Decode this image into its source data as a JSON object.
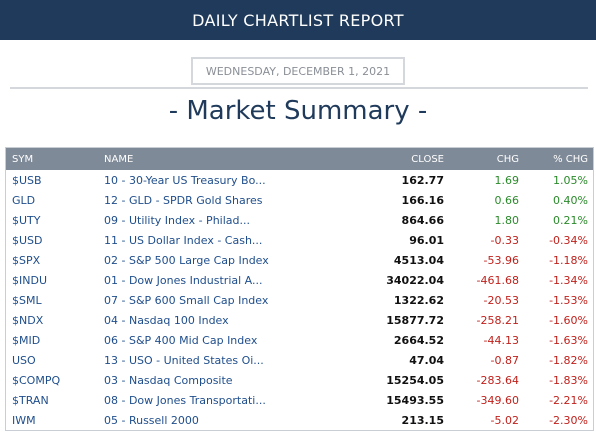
{
  "header": {
    "title": "DAILY CHARTLIST REPORT"
  },
  "date": "WEDNESDAY, DECEMBER 1, 2021",
  "section_title": "- Market Summary -",
  "colors": {
    "banner": "#1f3a5a",
    "positive": "#2a8a2a",
    "negative": "#c0201b",
    "link": "#1f4e8c"
  },
  "table": {
    "headers": {
      "sym": "SYM",
      "name": "NAME",
      "close": "CLOSE",
      "chg": "CHG",
      "pct": "% CHG"
    },
    "rows": [
      {
        "sym": "$USB",
        "name": "10 - 30-Year US Treasury Bo...",
        "close": "162.77",
        "chg": "1.69",
        "pct": "1.05%",
        "dir": "pos"
      },
      {
        "sym": "GLD",
        "name": "12 - GLD - SPDR Gold Shares",
        "close": "166.16",
        "chg": "0.66",
        "pct": "0.40%",
        "dir": "pos"
      },
      {
        "sym": "$UTY",
        "name": "09 - Utility Index - Philad...",
        "close": "864.66",
        "chg": "1.80",
        "pct": "0.21%",
        "dir": "pos"
      },
      {
        "sym": "$USD",
        "name": "11 - US Dollar Index - Cash...",
        "close": "96.01",
        "chg": "-0.33",
        "pct": "-0.34%",
        "dir": "neg"
      },
      {
        "sym": "$SPX",
        "name": "02 - S&P 500 Large Cap Index",
        "close": "4513.04",
        "chg": "-53.96",
        "pct": "-1.18%",
        "dir": "neg"
      },
      {
        "sym": "$INDU",
        "name": "01 - Dow Jones Industrial A...",
        "close": "34022.04",
        "chg": "-461.68",
        "pct": "-1.34%",
        "dir": "neg"
      },
      {
        "sym": "$SML",
        "name": "07 - S&P 600 Small Cap Index",
        "close": "1322.62",
        "chg": "-20.53",
        "pct": "-1.53%",
        "dir": "neg"
      },
      {
        "sym": "$NDX",
        "name": "04 - Nasdaq 100 Index",
        "close": "15877.72",
        "chg": "-258.21",
        "pct": "-1.60%",
        "dir": "neg"
      },
      {
        "sym": "$MID",
        "name": "06 - S&P 400 Mid Cap Index",
        "close": "2664.52",
        "chg": "-44.13",
        "pct": "-1.63%",
        "dir": "neg"
      },
      {
        "sym": "USO",
        "name": "13 - USO - United States Oi...",
        "close": "47.04",
        "chg": "-0.87",
        "pct": "-1.82%",
        "dir": "neg"
      },
      {
        "sym": "$COMPQ",
        "name": "03 - Nasdaq Composite",
        "close": "15254.05",
        "chg": "-283.64",
        "pct": "-1.83%",
        "dir": "neg"
      },
      {
        "sym": "$TRAN",
        "name": "08 - Dow Jones Transportati...",
        "close": "15493.55",
        "chg": "-349.60",
        "pct": "-2.21%",
        "dir": "neg"
      },
      {
        "sym": "IWM",
        "name": "05 - Russell 2000",
        "close": "213.15",
        "chg": "-5.02",
        "pct": "-2.30%",
        "dir": "neg"
      }
    ]
  }
}
